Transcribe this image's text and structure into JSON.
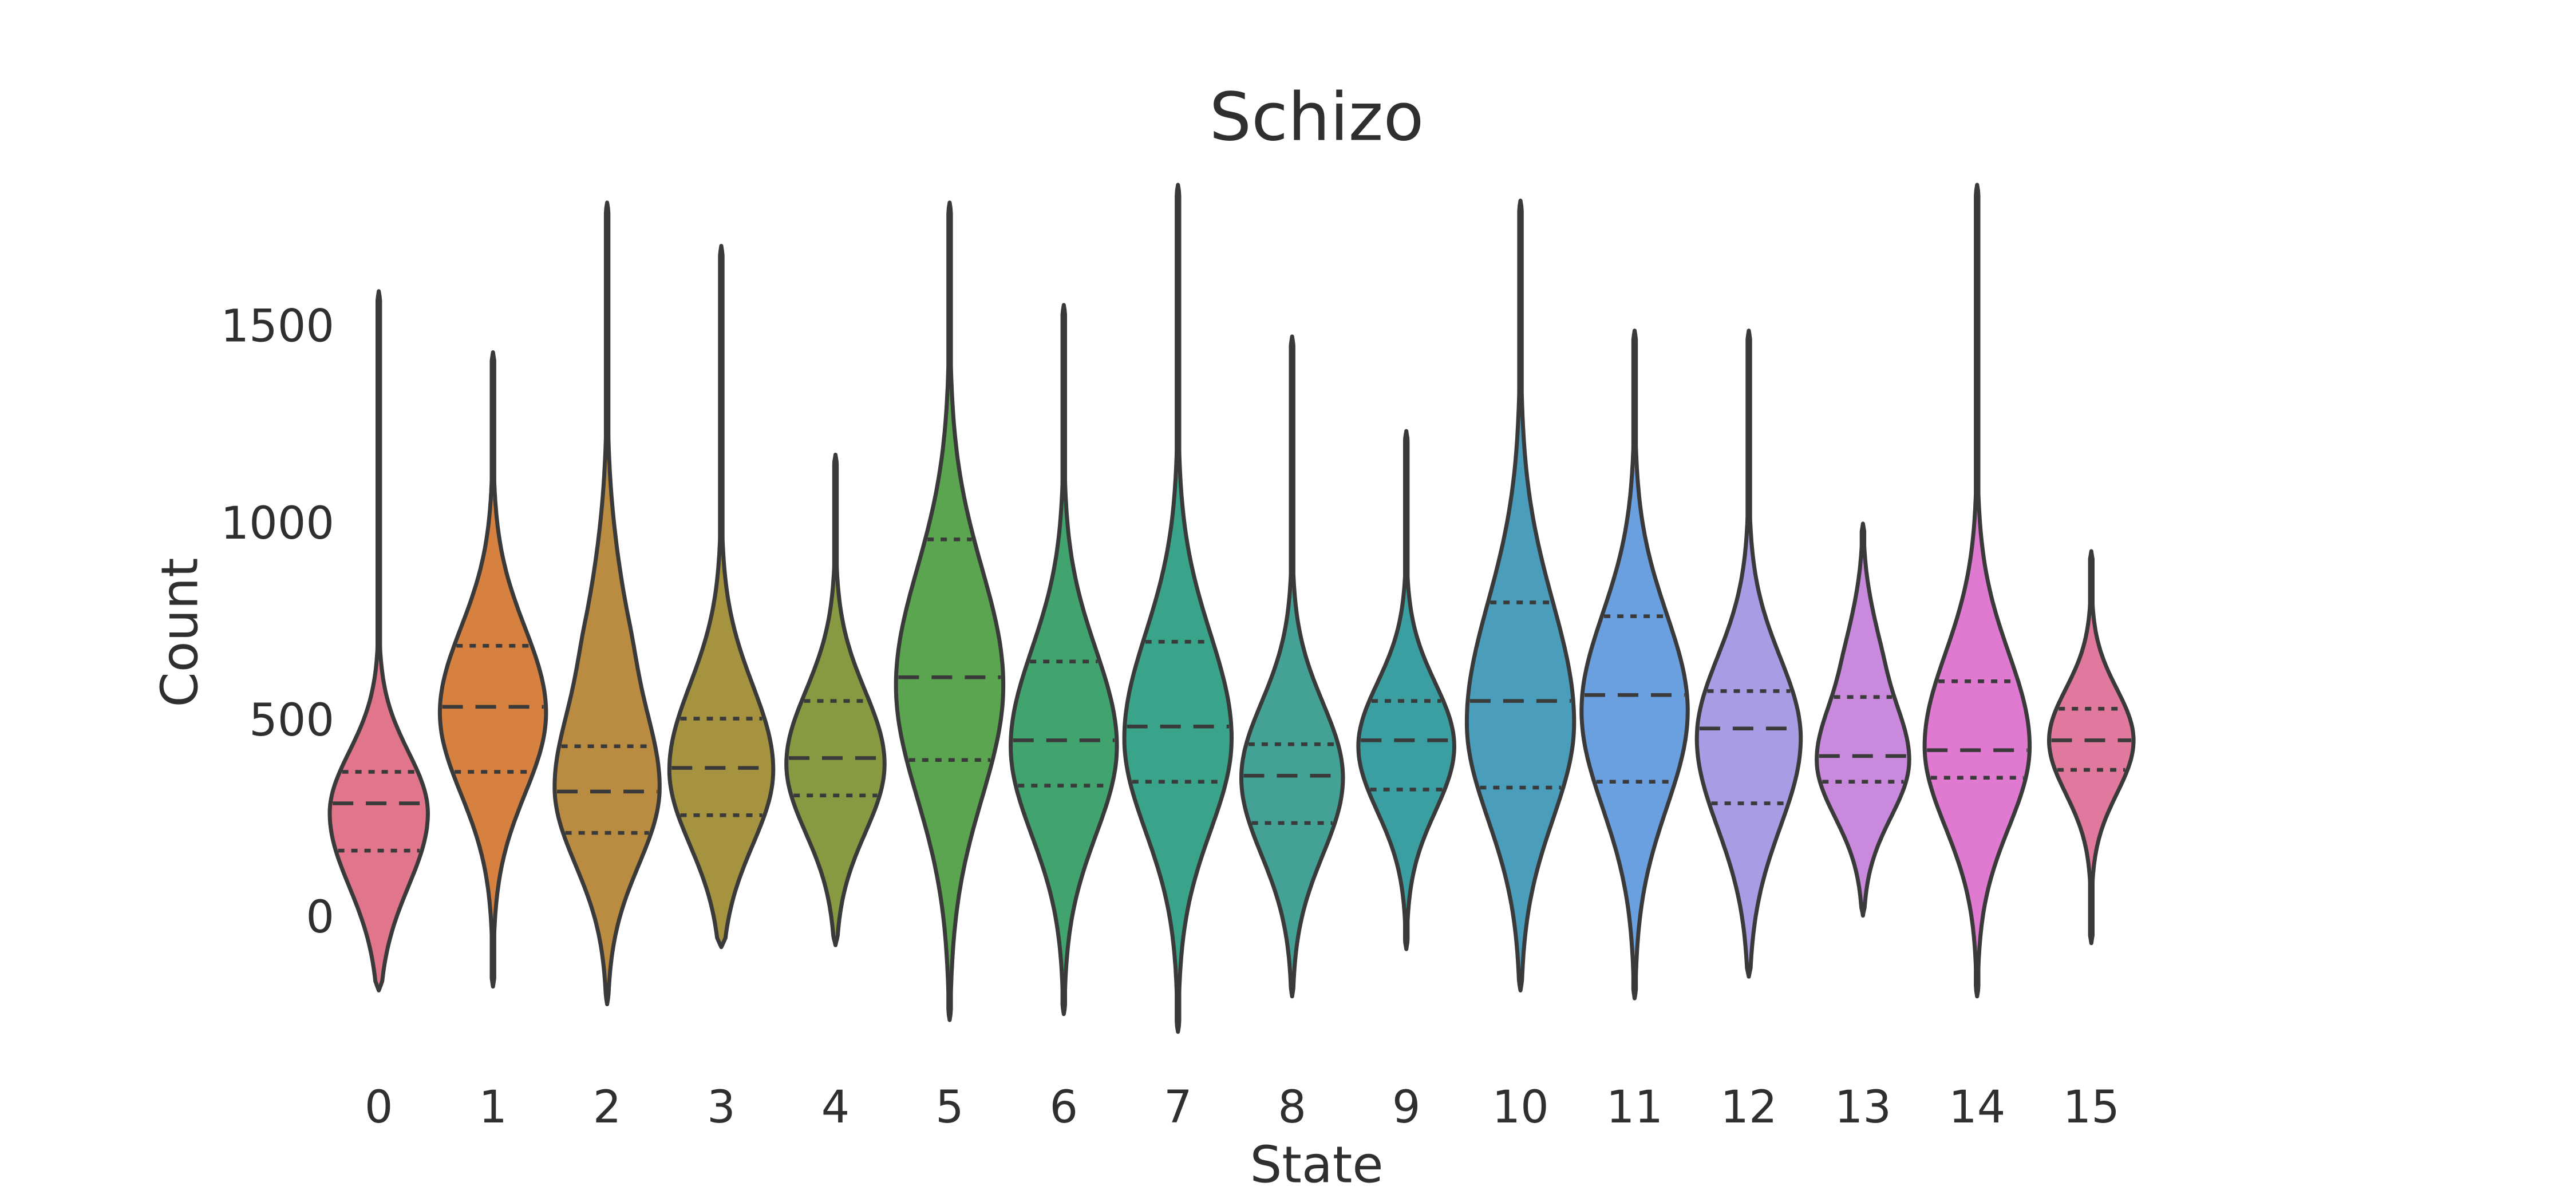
{
  "chart_data": {
    "type": "violin",
    "title": "Schizo",
    "xlabel": "State",
    "ylabel": "Count",
    "categories": [
      "0",
      "1",
      "2",
      "3",
      "4",
      "5",
      "6",
      "7",
      "8",
      "9",
      "10",
      "11",
      "12",
      "13",
      "14",
      "15"
    ],
    "yticks": [
      0,
      500,
      1000,
      1500
    ],
    "ylim": [
      -350,
      1950
    ],
    "grid": false,
    "legend": "none",
    "inner_style": "quartiles",
    "outline_color": "#3a3a3a",
    "text_color": "#2f2f2f",
    "series": [
      {
        "state": "0",
        "color": "#e0758b",
        "min": -185,
        "q25": 170,
        "median": 290,
        "q75": 370,
        "max": 1590,
        "mode": 265,
        "sig_low": 185,
        "sig_high": 155,
        "width": 0.9,
        "bumps": []
      },
      {
        "state": "1",
        "color": "#d6813f",
        "min": -175,
        "q25": 370,
        "median": 535,
        "q75": 690,
        "max": 1435,
        "mode": 520,
        "sig_low": 205,
        "sig_high": 215,
        "width": 0.97,
        "bumps": []
      },
      {
        "state": "2",
        "color": "#b98c42",
        "min": -220,
        "q25": 215,
        "median": 320,
        "q75": 435,
        "max": 1815,
        "mode": 330,
        "sig_low": 195,
        "sig_high": 235,
        "width": 0.96,
        "bumps": [
          [
            750,
            130,
            220,
            0.22
          ]
        ]
      },
      {
        "state": "3",
        "color": "#a59340",
        "min": -75,
        "q25": 260,
        "median": 380,
        "q75": 505,
        "max": 1705,
        "mode": 375,
        "sig_low": 190,
        "sig_high": 215,
        "width": 0.95,
        "bumps": []
      },
      {
        "state": "4",
        "color": "#879a41",
        "min": -70,
        "q25": 310,
        "median": 405,
        "q75": 550,
        "max": 1175,
        "mode": 390,
        "sig_low": 175,
        "sig_high": 185,
        "width": 0.9,
        "bumps": []
      },
      {
        "state": "5",
        "color": "#5ba450",
        "min": -260,
        "q25": 400,
        "median": 610,
        "q75": 960,
        "max": 1815,
        "mode": 590,
        "sig_low": 285,
        "sig_high": 295,
        "width": 0.98,
        "bumps": []
      },
      {
        "state": "6",
        "color": "#41a36e",
        "min": -245,
        "q25": 335,
        "median": 450,
        "q75": 650,
        "max": 1555,
        "mode": 435,
        "sig_low": 225,
        "sig_high": 245,
        "width": 0.97,
        "bumps": []
      },
      {
        "state": "7",
        "color": "#39a489",
        "min": -290,
        "q25": 345,
        "median": 485,
        "q75": 700,
        "max": 1860,
        "mode": 455,
        "sig_low": 235,
        "sig_high": 265,
        "width": 0.98,
        "bumps": []
      },
      {
        "state": "8",
        "color": "#44a196",
        "min": -200,
        "q25": 240,
        "median": 360,
        "q75": 440,
        "max": 1475,
        "mode": 355,
        "sig_low": 195,
        "sig_high": 190,
        "width": 0.93,
        "bumps": []
      },
      {
        "state": "9",
        "color": "#3b9fa1",
        "min": -80,
        "q25": 325,
        "median": 450,
        "q75": 550,
        "max": 1235,
        "mode": 435,
        "sig_low": 165,
        "sig_high": 160,
        "width": 0.88,
        "bumps": []
      },
      {
        "state": "10",
        "color": "#4a9dbb",
        "min": -185,
        "q25": 330,
        "median": 550,
        "q75": 800,
        "max": 1820,
        "mode": 495,
        "sig_low": 245,
        "sig_high": 305,
        "width": 0.98,
        "bumps": []
      },
      {
        "state": "11",
        "color": "#6ba0e0",
        "min": -205,
        "q25": 345,
        "median": 565,
        "q75": 765,
        "max": 1490,
        "mode": 525,
        "sig_low": 245,
        "sig_high": 245,
        "width": 0.97,
        "bumps": []
      },
      {
        "state": "12",
        "color": "#a89ce4",
        "min": -150,
        "q25": 290,
        "median": 480,
        "q75": 575,
        "max": 1490,
        "mode": 455,
        "sig_low": 225,
        "sig_high": 205,
        "width": 0.95,
        "bumps": []
      },
      {
        "state": "13",
        "color": "#c98ade",
        "min": 5,
        "q25": 345,
        "median": 410,
        "q75": 560,
        "max": 1000,
        "mode": 400,
        "sig_low": 145,
        "sig_high": 165,
        "width": 0.85,
        "bumps": [
          [
            700,
            90,
            120,
            0.18
          ]
        ]
      },
      {
        "state": "14",
        "color": "#df7ad0",
        "min": -200,
        "q25": 355,
        "median": 425,
        "q75": 600,
        "max": 1860,
        "mode": 435,
        "sig_low": 205,
        "sig_high": 235,
        "width": 0.96,
        "bumps": []
      },
      {
        "state": "15",
        "color": "#e1789d",
        "min": -65,
        "q25": 375,
        "median": 450,
        "q75": 530,
        "max": 930,
        "mode": 450,
        "sig_low": 135,
        "sig_high": 130,
        "width": 0.78,
        "bumps": []
      }
    ]
  }
}
